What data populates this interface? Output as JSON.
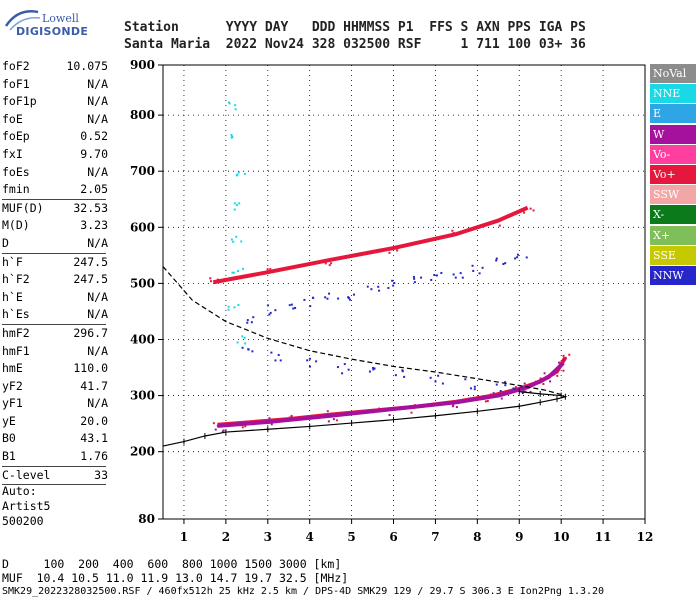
{
  "logo": {
    "line1": "Lowell",
    "line2": "DIGISONDE"
  },
  "header": {
    "row1": "Station      YYYY DAY   DDD HHMMSS P1  FFS S AXN PPS IGA PS",
    "row2": "Santa Maria  2022 Nov24 328 032500 RSF     1 711 100 03+ 36"
  },
  "params": [
    {
      "k": "foF2",
      "v": "10.075"
    },
    {
      "k": "foF1",
      "v": "N/A"
    },
    {
      "k": "foF1p",
      "v": "N/A"
    },
    {
      "k": "foE",
      "v": "N/A"
    },
    {
      "k": "foEp",
      "v": "0.52"
    },
    {
      "k": "fxI",
      "v": "9.70"
    },
    {
      "k": "foEs",
      "v": "N/A"
    },
    {
      "k": "fmin",
      "v": "2.05"
    },
    {
      "sep": true
    },
    {
      "k": "MUF(D)",
      "v": "32.53"
    },
    {
      "k": "M(D)",
      "v": "3.23"
    },
    {
      "k": "D",
      "v": "N/A"
    },
    {
      "sep": true
    },
    {
      "k": "h`F",
      "v": "247.5"
    },
    {
      "k": "h`F2",
      "v": "247.5"
    },
    {
      "k": "h`E",
      "v": "N/A"
    },
    {
      "k": "h`Es",
      "v": "N/A"
    },
    {
      "sep": true
    },
    {
      "k": "hmF2",
      "v": "296.7"
    },
    {
      "k": "hmF1",
      "v": "N/A"
    },
    {
      "k": "hmE",
      "v": "110.0"
    },
    {
      "k": "yF2",
      "v": "41.7"
    },
    {
      "k": "yF1",
      "v": "N/A"
    },
    {
      "k": "yE",
      "v": "20.0"
    },
    {
      "k": "B0",
      "v": "43.1"
    },
    {
      "k": "B1",
      "v": "1.76"
    },
    {
      "sep": true
    },
    {
      "k": "C-level",
      "v": "33"
    },
    {
      "sep": true
    }
  ],
  "auto": [
    "Auto:",
    "Artist5",
    "500200"
  ],
  "legend": [
    {
      "label": "NoVal",
      "color": "#8c8c8c"
    },
    {
      "label": "NNE",
      "color": "#19d9e6"
    },
    {
      "label": "E",
      "color": "#2ea6e6"
    },
    {
      "label": "W",
      "color": "#a5119c"
    },
    {
      "label": "Vo-",
      "color": "#ff3fa0"
    },
    {
      "label": "Vo+",
      "color": "#e5173c"
    },
    {
      "label": "SSW",
      "color": "#f2a6a6"
    },
    {
      "label": "X-",
      "color": "#0a7a1a"
    },
    {
      "label": "X+",
      "color": "#7fbf5a"
    },
    {
      "label": "SSE",
      "color": "#c6c800"
    },
    {
      "label": "NNW",
      "color": "#2727c9"
    }
  ],
  "footer": {
    "d_row": "D     100  200  400  600  800 1000 1500 3000 [km]",
    "muf_row": "MUF  10.4 10.5 11.0 11.9 13.0 14.7 19.7 32.5 [MHz]",
    "file_row": "SMK29_2022328032500.RSF / 460fx512h 25 kHz 2.5 km / DPS-4D SMK29 129 / 29.7 S 306.3 E Ion2Png 1.3.20"
  },
  "chart_data": {
    "type": "scatter",
    "title": "",
    "xlabel": "",
    "ylabel": "",
    "xlim": [
      0.5,
      12
    ],
    "ylim": [
      80,
      900
    ],
    "x_ticks": [
      1,
      2,
      3,
      4,
      5,
      6,
      7,
      8,
      9,
      10,
      11,
      12
    ],
    "y_ticks": [
      80,
      200,
      300,
      400,
      500,
      600,
      700,
      800,
      900
    ],
    "series": [
      {
        "kind": "trace",
        "color": "#e5173c",
        "x": [
          1.8,
          2.5,
          3.5,
          4.5,
          5.5,
          6.5,
          7.5,
          8.3,
          9.0,
          9.5,
          9.9,
          10.1
        ],
        "y": [
          248,
          252,
          258,
          266,
          273,
          280,
          289,
          299,
          312,
          325,
          343,
          368
        ]
      },
      {
        "kind": "trace",
        "color": "#a5119c",
        "x": [
          1.8,
          3.0,
          4.5,
          6.0,
          7.5,
          8.5,
          9.2,
          9.7,
          10.05
        ],
        "y": [
          246,
          253,
          264,
          276,
          288,
          300,
          315,
          333,
          358
        ]
      },
      {
        "kind": "trace",
        "color": "#e5173c",
        "x": [
          1.7,
          3.0,
          4.5,
          6.0,
          7.5,
          8.5,
          9.2
        ],
        "y": [
          502,
          520,
          542,
          563,
          588,
          612,
          635
        ]
      },
      {
        "kind": "points",
        "color": "#2727c9",
        "x": [
          2.5,
          3.0,
          3.5,
          4.0,
          4.5,
          5.0,
          5.5,
          6.0,
          6.5,
          7.0,
          7.5,
          8.0,
          8.5,
          9.0,
          2.5,
          3.2,
          4.0,
          4.8,
          5.5,
          6.2,
          7.0,
          7.8,
          8.6,
          9.0
        ],
        "y": [
          440,
          455,
          462,
          470,
          475,
          480,
          490,
          498,
          505,
          512,
          520,
          528,
          540,
          550,
          385,
          372,
          360,
          350,
          345,
          338,
          330,
          322,
          318,
          310
        ]
      },
      {
        "kind": "points",
        "color": "#19d9e6",
        "x": [
          2.2,
          2.25,
          2.3,
          2.2,
          2.25,
          2.3,
          2.2,
          2.28
        ],
        "y": [
          820,
          760,
          700,
          640,
          580,
          520,
          460,
          400
        ]
      },
      {
        "kind": "profile",
        "color": "#000000",
        "dash": true,
        "x": [
          0.5,
          1.2,
          2.0,
          3.0,
          4.0,
          5.0,
          6.0,
          7.0,
          8.0,
          9.0,
          9.6,
          10.0,
          10.1
        ],
        "y": [
          530,
          470,
          432,
          402,
          380,
          365,
          352,
          342,
          330,
          318,
          310,
          302,
          297
        ]
      },
      {
        "kind": "virtual",
        "color": "#000000",
        "x": [
          0.5,
          1.0,
          1.5,
          2.0,
          3.0,
          4.0,
          5.0,
          6.0,
          7.0,
          8.0,
          9.0,
          9.5,
          9.9,
          10.1,
          10.0,
          9.5,
          9.0
        ],
        "y": [
          210,
          218,
          228,
          235,
          240,
          245,
          251,
          257,
          264,
          272,
          281,
          288,
          294,
          298,
          300,
          303,
          307
        ]
      }
    ]
  }
}
